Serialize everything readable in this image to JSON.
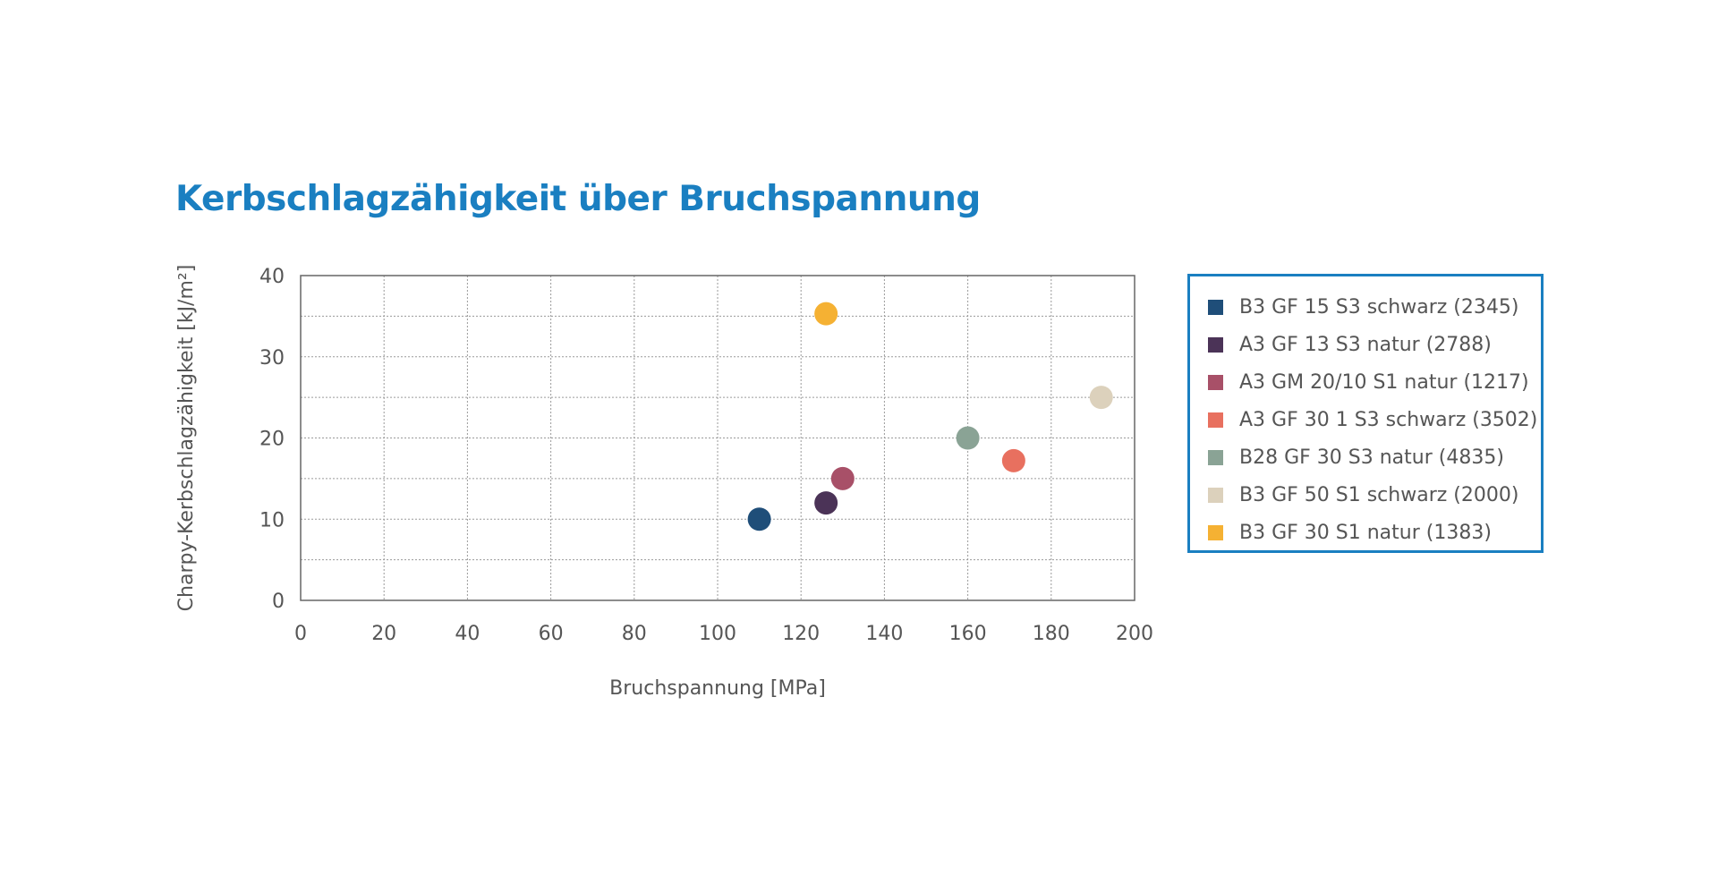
{
  "chart_data": {
    "type": "scatter",
    "title": "Kerbschlagzähigkeit über Bruchspannung",
    "xlabel": "Bruchspannung [MPa]",
    "ylabel": "Charpy-Kerbschlagzähigkeit [kJ/m²]",
    "xlim": [
      0,
      200
    ],
    "ylim": [
      0,
      40
    ],
    "xticks": [
      0,
      20,
      40,
      60,
      80,
      100,
      120,
      140,
      160,
      180,
      200
    ],
    "yticks": [
      0,
      10,
      20,
      30,
      40
    ],
    "x_tick_labels": [
      "0",
      "20",
      "40",
      "60",
      "80",
      "100",
      "120",
      "140",
      "160",
      "180",
      "200"
    ],
    "y_tick_labels": [
      "0",
      "10",
      "20",
      "30",
      "40"
    ],
    "grid": true,
    "legend_position": "right",
    "series": [
      {
        "name": "B3 GF 15 S3 schwarz (2345)",
        "color": "#1f4e79",
        "x": 110,
        "y": 10
      },
      {
        "name": "A3 GF 13 S3 natur (2788)",
        "color": "#4b3357",
        "x": 126,
        "y": 12
      },
      {
        "name": "A3 GM 20/10 S1 natur (1217)",
        "color": "#a85068",
        "x": 130,
        "y": 15
      },
      {
        "name": "A3 GF 30 1 S3 schwarz (3502)",
        "color": "#e8705f",
        "x": 171,
        "y": 17.2
      },
      {
        "name": "B28 GF 30 S3 natur (4835)",
        "color": "#8aa395",
        "x": 160,
        "y": 20
      },
      {
        "name": "B3 GF 50 S1 schwarz (2000)",
        "color": "#dcd1bc",
        "x": 192,
        "y": 25
      },
      {
        "name": "B3 GF 30 S1 natur (1383)",
        "color": "#f5b133",
        "x": 126,
        "y": 35.3
      }
    ]
  }
}
